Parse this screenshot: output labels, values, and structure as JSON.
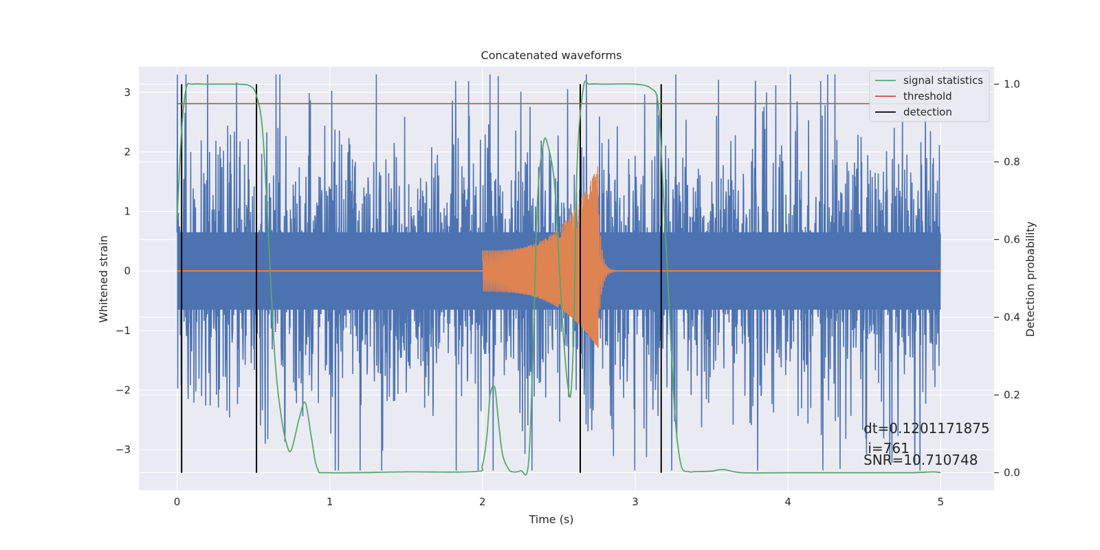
{
  "chart_data": {
    "type": "line",
    "title": "Concatenated waveforms",
    "xlabel": "Time (s)",
    "ylabel": "Whitened strain",
    "ylabel_right": "Detection probability",
    "xlim": [
      -0.25,
      5.35
    ],
    "ylim": [
      -3.68,
      3.43
    ],
    "ylim_right": [
      -0.045,
      1.045
    ],
    "x_ticks": [
      0,
      1,
      2,
      3,
      4,
      5
    ],
    "x_tick_labels": [
      "0",
      "1",
      "2",
      "3",
      "4",
      "5"
    ],
    "y_ticks": [
      -3,
      -2,
      -1,
      0,
      1,
      2,
      3
    ],
    "y_tick_labels": [
      "−3",
      "−2",
      "−1",
      "0",
      "1",
      "2",
      "3"
    ],
    "y_right_ticks": [
      0.0,
      0.2,
      0.4,
      0.6,
      0.8,
      1.0
    ],
    "y_right_tick_labels": [
      "0.0",
      "0.2",
      "0.4",
      "0.6",
      "0.8",
      "1.0"
    ],
    "grid": true,
    "legend_position": "top-right",
    "colors": {
      "strain": "#4c72b0",
      "waveform": "#dd8452",
      "signal_statistics": "#55a868",
      "threshold": "#c44e52",
      "detection": "#000000",
      "axes_bg": "#eaeaf2",
      "grid": "#ffffff"
    },
    "series": [
      {
        "name": "signal statistics",
        "axis": "right",
        "x": [
          0,
          0.03,
          0.06,
          0.1,
          0.2,
          0.4,
          0.48,
          0.52,
          0.56,
          0.6,
          0.64,
          0.68,
          0.72,
          0.75,
          0.8,
          0.84,
          0.88,
          0.92,
          1.0,
          1.5,
          1.95,
          2.0,
          2.03,
          2.05,
          2.08,
          2.1,
          2.13,
          2.17,
          2.2,
          2.25,
          2.3,
          2.33,
          2.36,
          2.4,
          2.43,
          2.47,
          2.5,
          2.53,
          2.56,
          2.58,
          2.6,
          2.62,
          2.66,
          2.7,
          2.8,
          3.0,
          3.1,
          3.15,
          3.18,
          3.22,
          3.26,
          3.3,
          3.35,
          3.4,
          3.5,
          3.58,
          3.7,
          4.0,
          4.5,
          4.8,
          4.95,
          5.0
        ],
        "y": [
          0.65,
          0.88,
          0.99,
          1.0,
          1.0,
          1.0,
          0.995,
          0.97,
          0.88,
          0.6,
          0.3,
          0.15,
          0.07,
          0.06,
          0.14,
          0.18,
          0.09,
          0.01,
          0.0,
          0.002,
          0.003,
          0.02,
          0.1,
          0.2,
          0.22,
          0.15,
          0.05,
          0.01,
          0.002,
          0.005,
          0.02,
          0.3,
          0.7,
          0.85,
          0.84,
          0.75,
          0.55,
          0.35,
          0.22,
          0.21,
          0.4,
          0.8,
          0.99,
          1.0,
          1.0,
          1.0,
          0.99,
          0.95,
          0.75,
          0.45,
          0.15,
          0.02,
          0.003,
          0.003,
          0.004,
          0.008,
          0.0,
          0.0,
          0.0,
          0.0,
          0.002,
          0.0
        ]
      },
      {
        "name": "threshold",
        "axis": "right",
        "x": [
          0,
          5
        ],
        "y": [
          0.95,
          0.95
        ]
      },
      {
        "name": "detection",
        "axis": "right",
        "x": [
          0.03,
          0.52,
          2.64,
          3.17
        ],
        "y_range": [
          0.0,
          1.0
        ]
      }
    ],
    "strain_noise": {
      "x_range": [
        0,
        5
      ],
      "core_band": [
        -0.65,
        0.65
      ],
      "envelope_max": 3.3,
      "envelope_min": -3.35
    },
    "injected_waveform": {
      "x_start": 2.0,
      "x_merger": 2.76,
      "amplitude_start": 0.35,
      "amplitude_peak": 1.8,
      "amplitude_min_peak": -1.3
    },
    "annotations": [
      "dt=0.1201171875",
      " i=761",
      "SNR=10.710748"
    ]
  }
}
